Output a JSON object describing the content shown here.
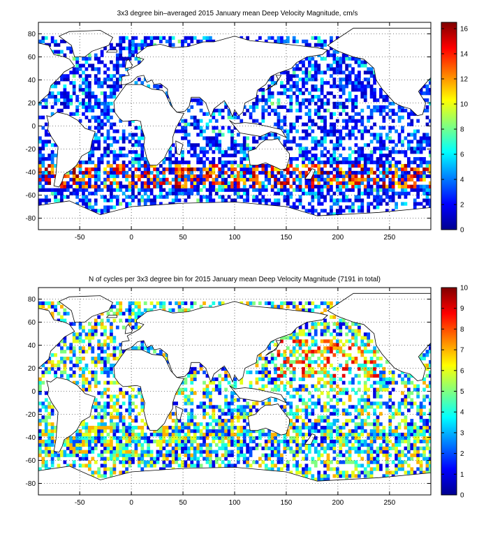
{
  "panels": [
    {
      "id": "velocity",
      "title": "3x3 degree bin–averaged 2015 January mean Deep Velocity Magnitude, cm/s",
      "x_ticks": [
        "-50",
        "0",
        "50",
        "100",
        "150",
        "200",
        "250"
      ],
      "y_ticks": [
        "80",
        "60",
        "40",
        "20",
        "0",
        "-20",
        "-40",
        "-60",
        "-80"
      ],
      "colorbar_ticks": [
        "16",
        "14",
        "12",
        "10",
        "8",
        "6",
        "4",
        "2",
        "0"
      ],
      "colorbar_range": [
        0,
        16.5
      ],
      "colormap": "jet",
      "xlim": [
        -90,
        290
      ],
      "ylim": [
        -90,
        90
      ]
    },
    {
      "id": "cycles",
      "title": "N of cycles per 3x3 degree bin for 2015 January mean Deep Velocity Magnitude (7191 in total)",
      "x_ticks": [
        "-50",
        "0",
        "50",
        "100",
        "150",
        "200",
        "250"
      ],
      "y_ticks": [
        "80",
        "60",
        "40",
        "20",
        "0",
        "-20",
        "-40",
        "-60",
        "-80"
      ],
      "colorbar_ticks": [
        "10",
        "9",
        "8",
        "7",
        "6",
        "5",
        "4",
        "3",
        "2",
        "1",
        "0"
      ],
      "colorbar_range": [
        0,
        10
      ],
      "colormap": "jet",
      "xlim": [
        -90,
        290
      ],
      "ylim": [
        -90,
        90
      ]
    }
  ],
  "colors": {
    "background": "#ffffff",
    "axis": "#000000",
    "grid": "#000000",
    "coastline": "#000000"
  }
}
